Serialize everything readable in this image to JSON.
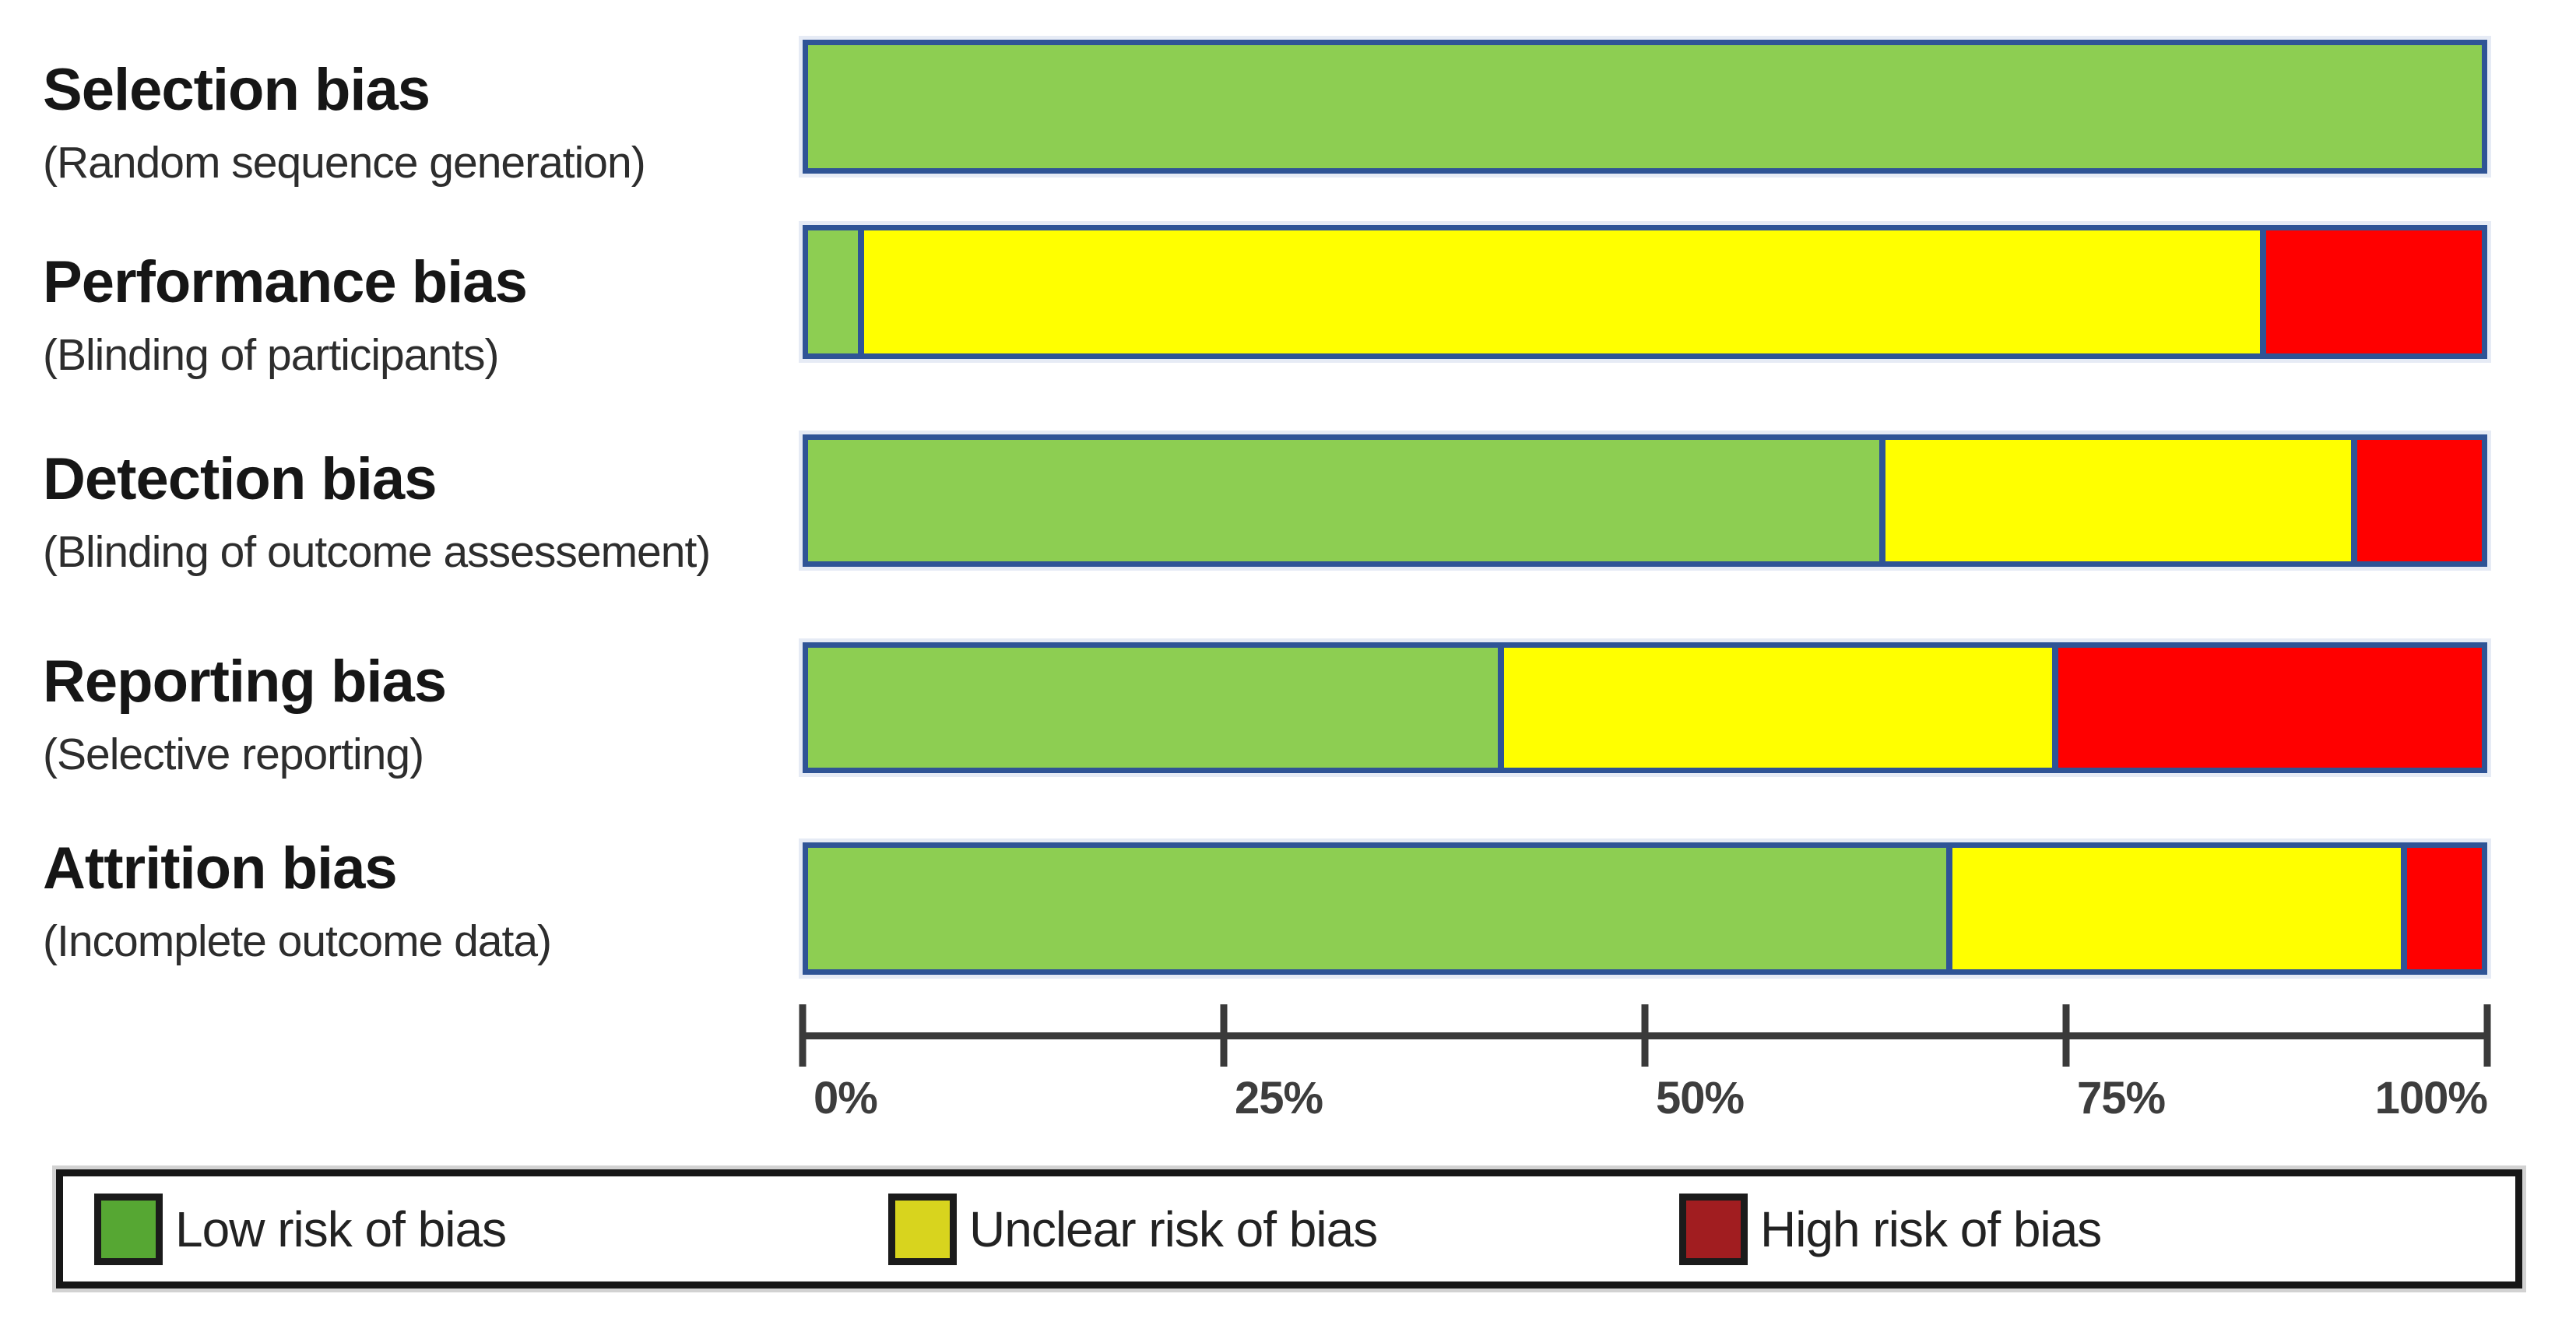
{
  "chart_data": {
    "type": "bar",
    "orientation": "horizontal",
    "stacked": true,
    "unit": "percent",
    "background": "#ffffff",
    "bar_border_color": "#2F5496",
    "axis_color": "#3a3a3a",
    "categories": [
      "Selection bias",
      "Performance bias",
      "Detection bias",
      "Reporting bias",
      "Attrition bias"
    ],
    "subcategories": [
      "(Random sequence generation)",
      "(Blinding of participants)",
      "(Blinding of outcome assessement)",
      "(Selective reporting)",
      "(Incomplete outcome data)"
    ],
    "series": [
      {
        "key": "low",
        "name": "Low risk of bias",
        "color": "#8DCE52",
        "values": [
          100,
          3,
          64.5,
          41.5,
          68.5
        ]
      },
      {
        "key": "unclear",
        "name": "Unclear risk of bias",
        "color": "#FFFF00",
        "values": [
          0,
          84,
          28,
          33,
          27
        ]
      },
      {
        "key": "high",
        "name": "High risk of bias",
        "color": "#FF0000",
        "values": [
          0,
          13,
          7.5,
          25.5,
          4.5
        ]
      }
    ],
    "axis": {
      "range_pct": [
        0,
        100
      ],
      "values": [
        0,
        25,
        50,
        75,
        100
      ],
      "tick_labels": [
        "0%",
        "25%",
        "50%",
        "75%",
        "100%"
      ]
    },
    "legend": {
      "position": "bottom",
      "items": [
        {
          "label": "Low risk of bias",
          "color": "#56A733"
        },
        {
          "label": "Unclear risk of bias",
          "color": "#D8D41E"
        },
        {
          "label": "High risk of bias",
          "color": "#A11D20"
        }
      ]
    }
  }
}
